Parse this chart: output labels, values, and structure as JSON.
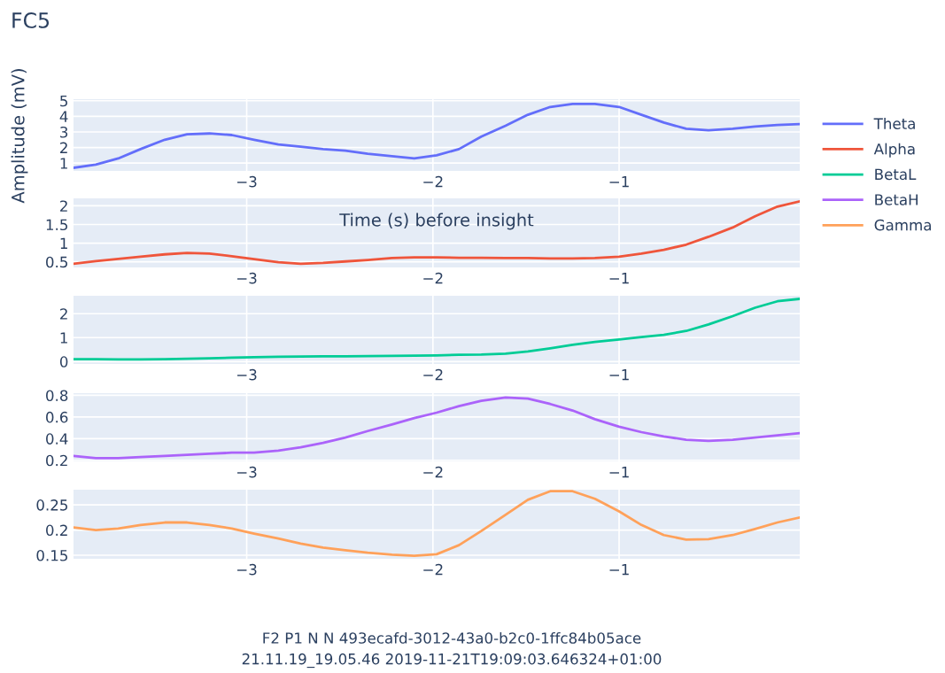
{
  "chart_data": [
    {
      "type": "line",
      "title": "FC5",
      "ylabel": "Amplitude (mV)",
      "xlabel": "Time (s) before insight",
      "legend": "right",
      "grid": true,
      "x": [
        -3.93,
        -3.81,
        -3.69,
        -3.57,
        -3.44,
        -3.32,
        -3.2,
        -3.08,
        -2.96,
        -2.83,
        -2.71,
        -2.59,
        -2.47,
        -2.35,
        -2.22,
        -2.1,
        -1.98,
        -1.86,
        -1.74,
        -1.61,
        -1.49,
        -1.37,
        -1.25,
        -1.13,
        -1.0,
        -0.88,
        -0.76,
        -0.64,
        -0.52,
        -0.39,
        -0.27,
        -0.15,
        -0.03
      ],
      "xlim": [
        -3.93,
        -0.03
      ],
      "xticks": [
        {
          "value": -3,
          "label": "−3"
        },
        {
          "value": -2,
          "label": "−2"
        },
        {
          "value": -1,
          "label": "−1"
        }
      ],
      "ylim": [
        0.5,
        5.1
      ],
      "yticks": [
        1,
        2,
        3,
        4,
        5
      ],
      "series": [
        {
          "name": "Theta",
          "color": "#636efa",
          "values": [
            0.7,
            0.9,
            1.3,
            1.9,
            2.5,
            2.85,
            2.9,
            2.8,
            2.5,
            2.2,
            2.05,
            1.9,
            1.8,
            1.6,
            1.45,
            1.3,
            1.5,
            1.9,
            2.7,
            3.4,
            4.1,
            4.6,
            4.8,
            4.8,
            4.6,
            4.1,
            3.6,
            3.2,
            3.1,
            3.2,
            3.35,
            3.45,
            3.5
          ]
        }
      ]
    },
    {
      "type": "line",
      "legend": "right",
      "grid": true,
      "x": [
        -3.93,
        -3.81,
        -3.69,
        -3.57,
        -3.44,
        -3.32,
        -3.2,
        -3.08,
        -2.96,
        -2.83,
        -2.71,
        -2.59,
        -2.47,
        -2.35,
        -2.22,
        -2.1,
        -1.98,
        -1.86,
        -1.74,
        -1.61,
        -1.49,
        -1.37,
        -1.25,
        -1.13,
        -1.0,
        -0.88,
        -0.76,
        -0.64,
        -0.52,
        -0.39,
        -0.27,
        -0.15,
        -0.03
      ],
      "xlim": [
        -3.93,
        -0.03
      ],
      "xticks": [
        {
          "value": -3,
          "label": "−3"
        },
        {
          "value": -2,
          "label": "−2"
        },
        {
          "value": -1,
          "label": "−1"
        }
      ],
      "ylim": [
        0.35,
        2.2
      ],
      "yticks": [
        0.5,
        1,
        1.5,
        2
      ],
      "series": [
        {
          "name": "Alpha",
          "color": "#ef553b",
          "values": [
            0.45,
            0.52,
            0.58,
            0.64,
            0.7,
            0.74,
            0.72,
            0.65,
            0.57,
            0.49,
            0.45,
            0.47,
            0.51,
            0.55,
            0.6,
            0.62,
            0.62,
            0.61,
            0.61,
            0.6,
            0.6,
            0.59,
            0.59,
            0.6,
            0.64,
            0.72,
            0.82,
            0.96,
            1.17,
            1.42,
            1.72,
            1.98,
            2.12
          ]
        }
      ]
    },
    {
      "type": "line",
      "legend": "right",
      "grid": true,
      "x": [
        -3.93,
        -3.81,
        -3.69,
        -3.57,
        -3.44,
        -3.32,
        -3.2,
        -3.08,
        -2.96,
        -2.83,
        -2.71,
        -2.59,
        -2.47,
        -2.35,
        -2.22,
        -2.1,
        -1.98,
        -1.86,
        -1.74,
        -1.61,
        -1.49,
        -1.37,
        -1.25,
        -1.13,
        -1.0,
        -0.88,
        -0.76,
        -0.64,
        -0.52,
        -0.39,
        -0.27,
        -0.15,
        -0.03
      ],
      "xlim": [
        -3.93,
        -0.03
      ],
      "xticks": [
        {
          "value": -3,
          "label": "−3"
        },
        {
          "value": -2,
          "label": "−2"
        },
        {
          "value": -1,
          "label": "−1"
        }
      ],
      "ylim": [
        -0.1,
        2.75
      ],
      "yticks": [
        0,
        1,
        2
      ],
      "series": [
        {
          "name": "BetaL",
          "color": "#00cc96",
          "values": [
            0.1,
            0.1,
            0.09,
            0.09,
            0.1,
            0.12,
            0.14,
            0.16,
            0.18,
            0.2,
            0.21,
            0.22,
            0.22,
            0.23,
            0.24,
            0.25,
            0.26,
            0.28,
            0.29,
            0.33,
            0.42,
            0.55,
            0.7,
            0.82,
            0.92,
            1.02,
            1.12,
            1.28,
            1.55,
            1.9,
            2.25,
            2.52,
            2.62
          ]
        }
      ]
    },
    {
      "type": "line",
      "legend": "right",
      "grid": true,
      "x": [
        -3.93,
        -3.81,
        -3.69,
        -3.57,
        -3.44,
        -3.32,
        -3.2,
        -3.08,
        -2.96,
        -2.83,
        -2.71,
        -2.59,
        -2.47,
        -2.35,
        -2.22,
        -2.1,
        -1.98,
        -1.86,
        -1.74,
        -1.61,
        -1.49,
        -1.37,
        -1.25,
        -1.13,
        -1.0,
        -0.88,
        -0.76,
        -0.64,
        -0.52,
        -0.39,
        -0.27,
        -0.15,
        -0.03
      ],
      "xlim": [
        -3.93,
        -0.03
      ],
      "xticks": [
        {
          "value": -3,
          "label": "−3"
        },
        {
          "value": -2,
          "label": "−2"
        },
        {
          "value": -1,
          "label": "−1"
        }
      ],
      "ylim": [
        0.19,
        0.82
      ],
      "yticks": [
        0.2,
        0.4,
        0.6,
        0.8
      ],
      "series": [
        {
          "name": "BetaH",
          "color": "#ab63fa",
          "values": [
            0.24,
            0.22,
            0.22,
            0.23,
            0.24,
            0.25,
            0.26,
            0.27,
            0.27,
            0.29,
            0.32,
            0.36,
            0.41,
            0.47,
            0.53,
            0.59,
            0.64,
            0.7,
            0.75,
            0.78,
            0.77,
            0.72,
            0.66,
            0.58,
            0.51,
            0.46,
            0.42,
            0.39,
            0.38,
            0.39,
            0.41,
            0.43,
            0.45
          ]
        }
      ]
    },
    {
      "type": "line",
      "legend": "right",
      "grid": true,
      "x": [
        -3.93,
        -3.81,
        -3.69,
        -3.57,
        -3.44,
        -3.32,
        -3.2,
        -3.08,
        -2.96,
        -2.83,
        -2.71,
        -2.59,
        -2.47,
        -2.35,
        -2.22,
        -2.1,
        -1.98,
        -1.86,
        -1.74,
        -1.61,
        -1.49,
        -1.37,
        -1.25,
        -1.13,
        -1.0,
        -0.88,
        -0.76,
        -0.64,
        -0.52,
        -0.39,
        -0.27,
        -0.15,
        -0.03
      ],
      "xlim": [
        -3.93,
        -0.03
      ],
      "xticks": [
        {
          "value": -3,
          "label": "−3"
        },
        {
          "value": -2,
          "label": "−2"
        },
        {
          "value": -1,
          "label": "−1"
        }
      ],
      "ylim": [
        0.143,
        0.28
      ],
      "yticks": [
        0.15,
        0.2,
        0.25
      ],
      "annotations": [
        "F2 P1 N N 493ecafd-3012-43a0-b2c0-1ffc84b05ace",
        "21.11.19_19.05.46 2019-11-21T19:09:03.646324+01:00"
      ],
      "series": [
        {
          "name": "Gamma",
          "color": "#ffa15a",
          "values": [
            0.205,
            0.2,
            0.203,
            0.21,
            0.215,
            0.215,
            0.21,
            0.203,
            0.193,
            0.183,
            0.173,
            0.165,
            0.16,
            0.155,
            0.151,
            0.149,
            0.152,
            0.17,
            0.198,
            0.23,
            0.26,
            0.277,
            0.277,
            0.262,
            0.237,
            0.21,
            0.19,
            0.181,
            0.182,
            0.19,
            0.202,
            0.215,
            0.225
          ]
        }
      ]
    }
  ]
}
